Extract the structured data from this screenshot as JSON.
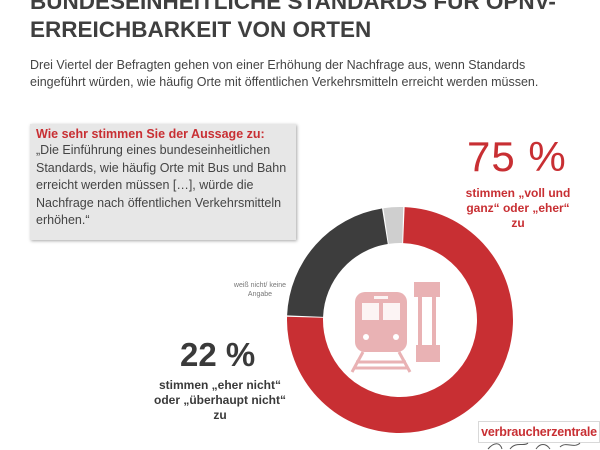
{
  "header": {
    "title_line1": "BUNDESEINHEITLICHE STANDARDS FÜR ÖPNV-",
    "title_line2": "ERREICHBARKEIT VON ORTEN",
    "subtitle": "Drei Viertel der Befragten gehen von einer Erhöhung der Nachfrage aus, wenn Standards eingeführt würden, wie häufig Orte mit öffentlichen Verkehrsmitteln erreicht werden müssen."
  },
  "quote": {
    "question": "Wie sehr stimmen Sie der Aussage zu:",
    "text": "„Die Einführung eines bundeseinheitlichen Standards, wie häufig Orte mit Bus und Bahn erreicht werden müssen […], würde die Nachfrage nach öffentlichen Verkehrsmitteln erhöhen.“"
  },
  "chart_data": {
    "type": "pie",
    "variant": "donut",
    "slices": [
      {
        "label": "stimmen „voll und ganz“ oder „eher“ zu",
        "value": 75,
        "display": "75 %",
        "color": "#c82f33"
      },
      {
        "label": "stimmen „eher nicht“ oder „überhaupt nicht“ zu",
        "value": 22,
        "display": "22 %",
        "color": "#3d3d3d"
      },
      {
        "label": "weiß nicht/ keine Angabe",
        "value": 3,
        "display": "",
        "color": "#cfcfcf"
      }
    ]
  },
  "labels": {
    "agree_pct": "75 %",
    "agree_text": "stimmen „voll und ganz“ oder „eher“ zu",
    "disagree_pct": "22 %",
    "disagree_text": "stimmen „eher nicht“ oder „überhaupt nicht“ zu",
    "unknown_text": "weiß nicht/ keine Angabe"
  },
  "icons": {
    "center": "train-station-icon"
  },
  "brand": {
    "name": "verbraucherzentrale"
  },
  "colors": {
    "accent": "#c82f33",
    "dark": "#3d3d3d",
    "light": "#cfcfcf",
    "icon": "#e9b2b4"
  }
}
